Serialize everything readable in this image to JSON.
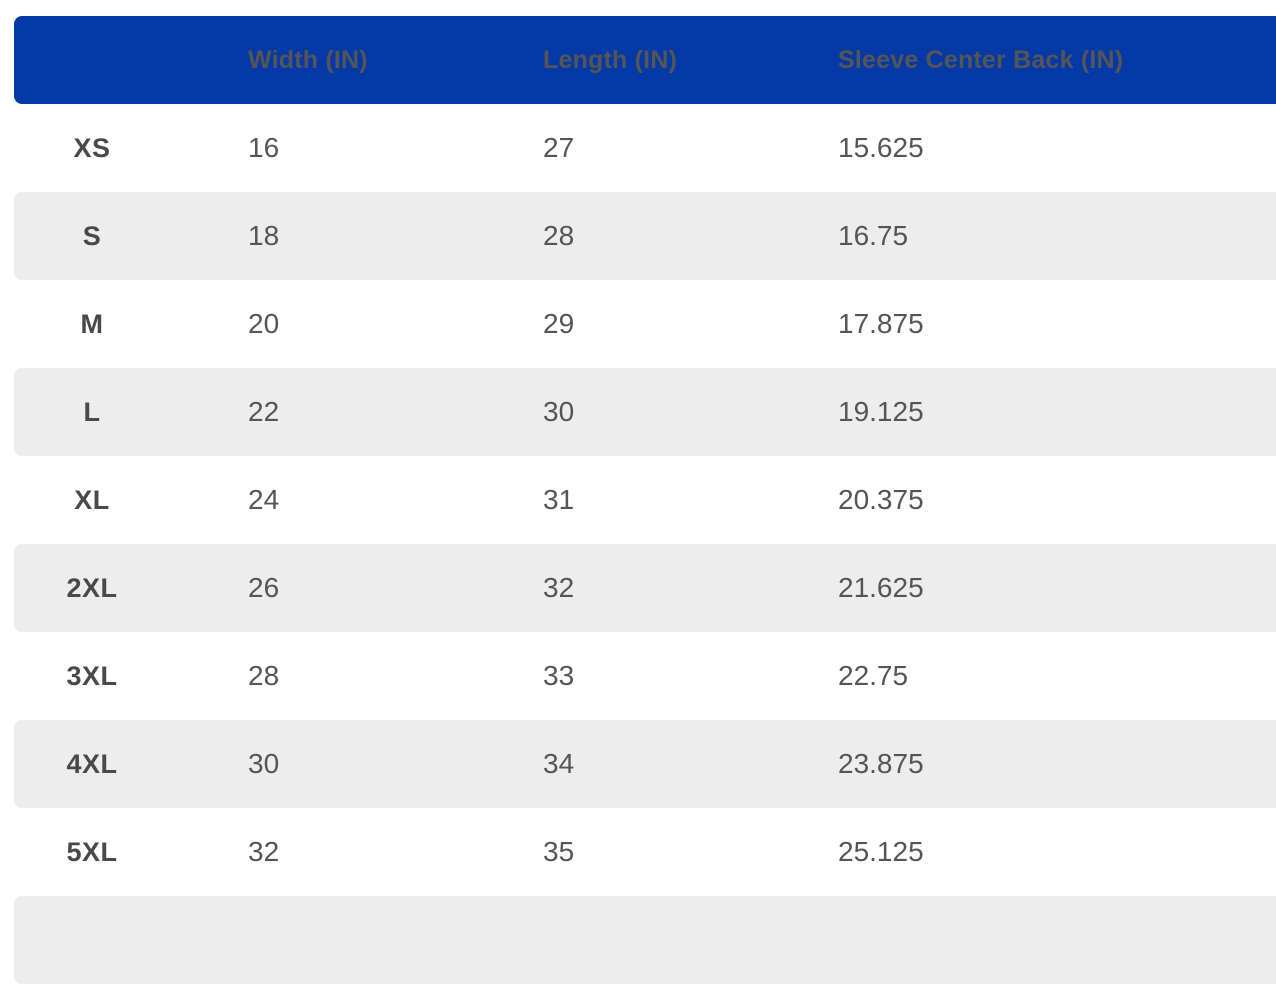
{
  "table": {
    "name": "apparel-size-chart",
    "columns": [
      {
        "key": "size",
        "label": ""
      },
      {
        "key": "width_in",
        "label": "Width (IN)"
      },
      {
        "key": "length_in",
        "label": "Length (IN)"
      },
      {
        "key": "sleeve_center_back_in",
        "label": "Sleeve Center Back (IN)"
      }
    ],
    "rows": [
      {
        "size": "XS",
        "width_in": "16",
        "length_in": "27",
        "sleeve_center_back_in": "15.625"
      },
      {
        "size": "S",
        "width_in": "18",
        "length_in": "28",
        "sleeve_center_back_in": "16.75"
      },
      {
        "size": "M",
        "width_in": "20",
        "length_in": "29",
        "sleeve_center_back_in": "17.875"
      },
      {
        "size": "L",
        "width_in": "22",
        "length_in": "30",
        "sleeve_center_back_in": "19.125"
      },
      {
        "size": "XL",
        "width_in": "24",
        "length_in": "31",
        "sleeve_center_back_in": "20.375"
      },
      {
        "size": "2XL",
        "width_in": "26",
        "length_in": "32",
        "sleeve_center_back_in": "21.625"
      },
      {
        "size": "3XL",
        "width_in": "28",
        "length_in": "33",
        "sleeve_center_back_in": "22.75"
      },
      {
        "size": "4XL",
        "width_in": "30",
        "length_in": "34",
        "sleeve_center_back_in": "23.875"
      },
      {
        "size": "5XL",
        "width_in": "32",
        "length_in": "35",
        "sleeve_center_back_in": "25.125"
      }
    ]
  },
  "colors": {
    "header_bg": "#0539A6",
    "header_text": "#FFFFFF",
    "stripe_bg": "#EEEDED",
    "size_label_text": "#48494B",
    "value_text": "#555557",
    "page_bg": "#FFFFFF"
  }
}
